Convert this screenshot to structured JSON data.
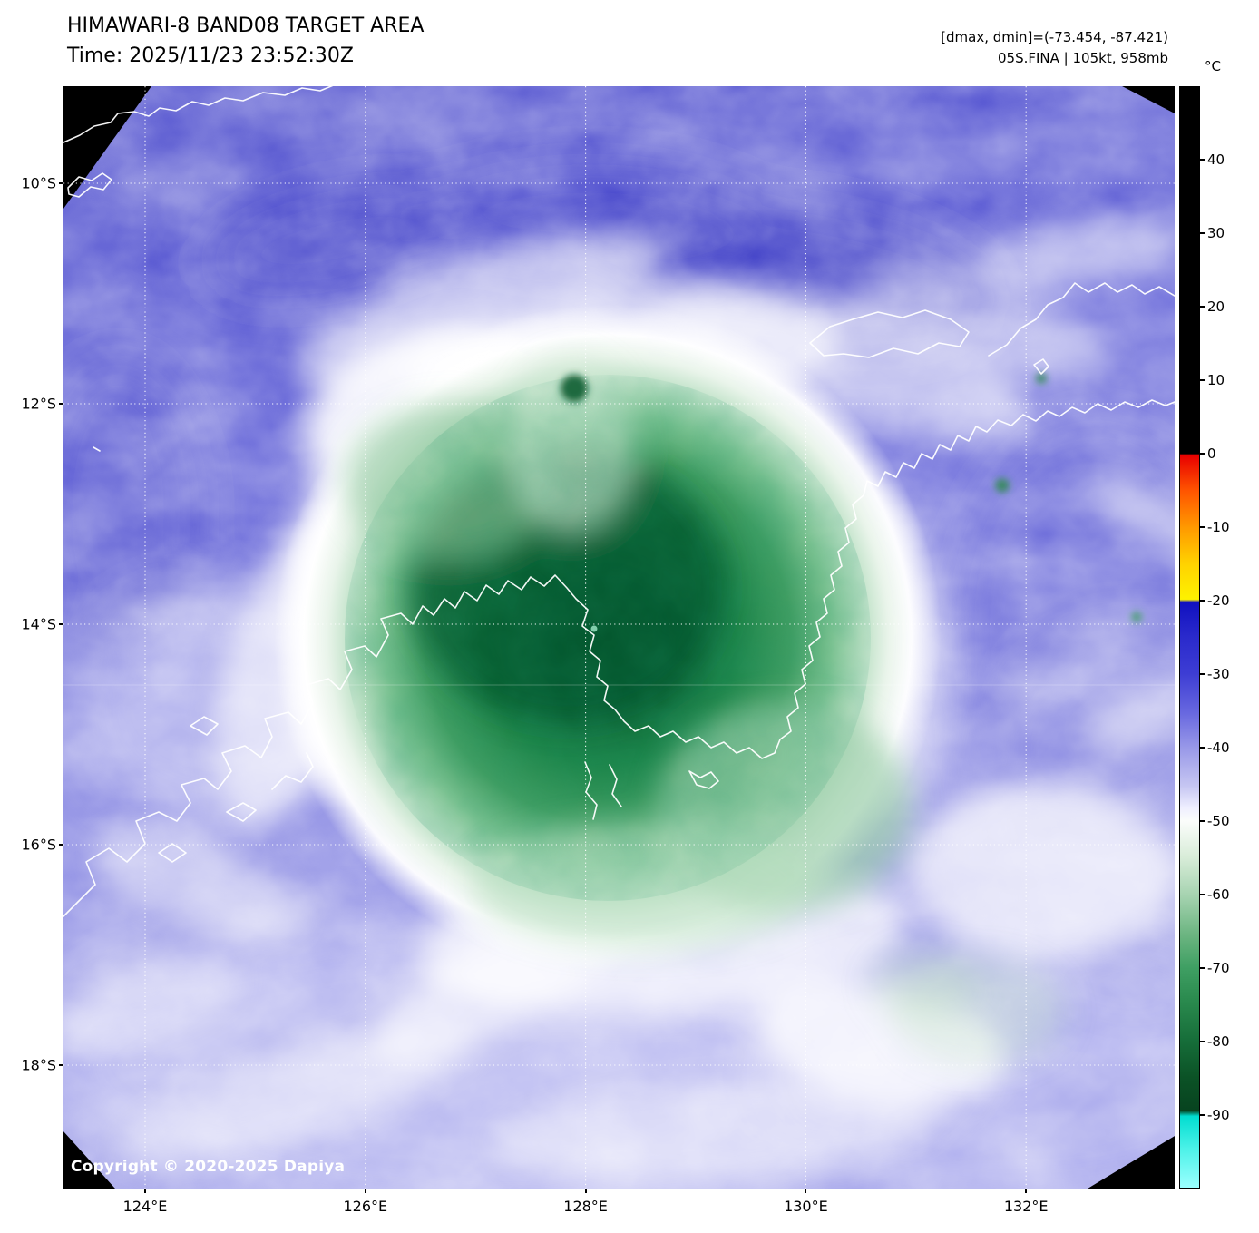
{
  "header": {
    "title": "HIMAWARI-8 BAND08 TARGET AREA",
    "time_label": "Time: 2025/11/23 23:52:30Z",
    "dmax_dmin_label": "[dmax, dmin]=(-73.454, -87.421)",
    "storm_label": "05S.FINA | 105kt, 958mb"
  },
  "axes": {
    "lat_labels": [
      "10°S",
      "12°S",
      "14°S",
      "16°S",
      "18°S"
    ],
    "lon_labels": [
      "124°E",
      "126°E",
      "128°E",
      "130°E",
      "132°E"
    ]
  },
  "colorbar": {
    "unit_label": "°C",
    "tick_labels": [
      "40",
      "30",
      "20",
      "10",
      "0",
      "-10",
      "-20",
      "-30",
      "-40",
      "-50",
      "-60",
      "-70",
      "-80",
      "-90"
    ],
    "tick_values": [
      40,
      30,
      20,
      10,
      0,
      -10,
      -20,
      -30,
      -40,
      -50,
      -60,
      -70,
      -80,
      -90
    ],
    "value_range": [
      50,
      -100
    ]
  },
  "map": {
    "copyright_label": "Copyright © 2020-2025 Dapiya",
    "colors": {
      "background": "#000000",
      "warm_cloud_blue": "#5656d6",
      "mid_cloud_lavender": "#9a9ae8",
      "cloud_white": "#ffffff",
      "cold_core_green": "#0d673a",
      "coldest_cyan": "#00ddd0",
      "coastline": "#ffffff",
      "gridline": "#ffffff"
    }
  }
}
